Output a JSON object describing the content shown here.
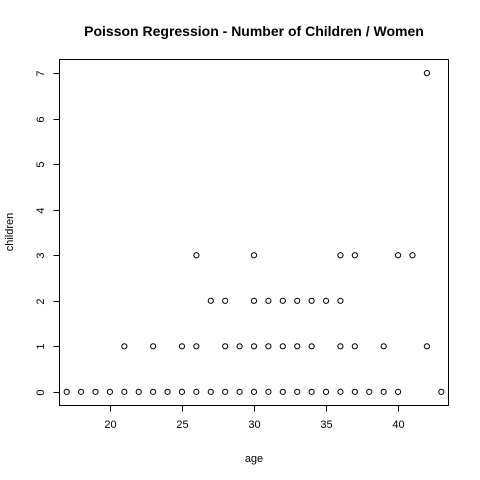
{
  "chart_data": {
    "type": "scatter",
    "title": "Poisson Regression - Number of Children / Women",
    "xlabel": "age",
    "ylabel": "children",
    "xlim": [
      16.5,
      43.5
    ],
    "ylim": [
      -0.3,
      7.3
    ],
    "x_ticks": [
      20,
      25,
      30,
      35,
      40
    ],
    "y_ticks": [
      0,
      1,
      2,
      3,
      4,
      5,
      6,
      7
    ],
    "grid": false,
    "legend": "none",
    "marker": "open-circle",
    "series": [
      {
        "points": [
          [
            17,
            0
          ],
          [
            18,
            0
          ],
          [
            19,
            0
          ],
          [
            20,
            0
          ],
          [
            21,
            0
          ],
          [
            22,
            0
          ],
          [
            23,
            0
          ],
          [
            24,
            0
          ],
          [
            25,
            0
          ],
          [
            26,
            0
          ],
          [
            27,
            0
          ],
          [
            28,
            0
          ],
          [
            29,
            0
          ],
          [
            30,
            0
          ],
          [
            31,
            0
          ],
          [
            32,
            0
          ],
          [
            33,
            0
          ],
          [
            34,
            0
          ],
          [
            35,
            0
          ],
          [
            36,
            0
          ],
          [
            37,
            0
          ],
          [
            38,
            0
          ],
          [
            39,
            0
          ],
          [
            40,
            0
          ],
          [
            43,
            0
          ],
          [
            21,
            1
          ],
          [
            23,
            1
          ],
          [
            25,
            1
          ],
          [
            26,
            1
          ],
          [
            28,
            1
          ],
          [
            29,
            1
          ],
          [
            30,
            1
          ],
          [
            31,
            1
          ],
          [
            32,
            1
          ],
          [
            33,
            1
          ],
          [
            34,
            1
          ],
          [
            36,
            1
          ],
          [
            37,
            1
          ],
          [
            39,
            1
          ],
          [
            42,
            1
          ],
          [
            27,
            2
          ],
          [
            28,
            2
          ],
          [
            30,
            2
          ],
          [
            31,
            2
          ],
          [
            32,
            2
          ],
          [
            33,
            2
          ],
          [
            34,
            2
          ],
          [
            35,
            2
          ],
          [
            36,
            2
          ],
          [
            26,
            3
          ],
          [
            30,
            3
          ],
          [
            36,
            3
          ],
          [
            37,
            3
          ],
          [
            40,
            3
          ],
          [
            41,
            3
          ],
          [
            42,
            7
          ]
        ]
      }
    ]
  }
}
